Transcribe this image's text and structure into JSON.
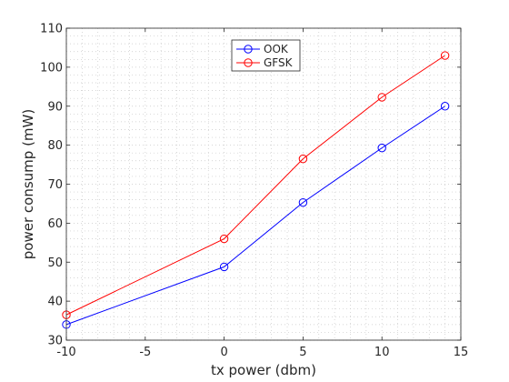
{
  "chart_data": {
    "type": "line",
    "title": "",
    "xlabel": "tx power (dbm)",
    "ylabel": "power consump (mW)",
    "xlim": [
      -10,
      15
    ],
    "ylim": [
      30,
      110
    ],
    "xticks": [
      -10,
      -5,
      0,
      5,
      10,
      15
    ],
    "yticks": [
      30,
      40,
      50,
      60,
      70,
      80,
      90,
      100,
      110
    ],
    "xtick_labels": [
      "-10",
      "-5",
      "0",
      "5",
      "10",
      "15"
    ],
    "ytick_labels": [
      "30",
      "40",
      "50",
      "60",
      "70",
      "80",
      "90",
      "100",
      "110"
    ],
    "grid": "minor-dotted",
    "legend_position": "top-center",
    "x": [
      -10,
      0,
      5,
      10,
      14
    ],
    "series": [
      {
        "name": "OOK",
        "color": "#0000ff",
        "marker": "circle",
        "values": [
          34.0,
          48.8,
          65.3,
          79.3,
          90.0
        ]
      },
      {
        "name": "GFSK",
        "color": "#ff0000",
        "marker": "circle",
        "values": [
          36.5,
          56.0,
          76.5,
          92.3,
          103.0
        ]
      }
    ]
  }
}
